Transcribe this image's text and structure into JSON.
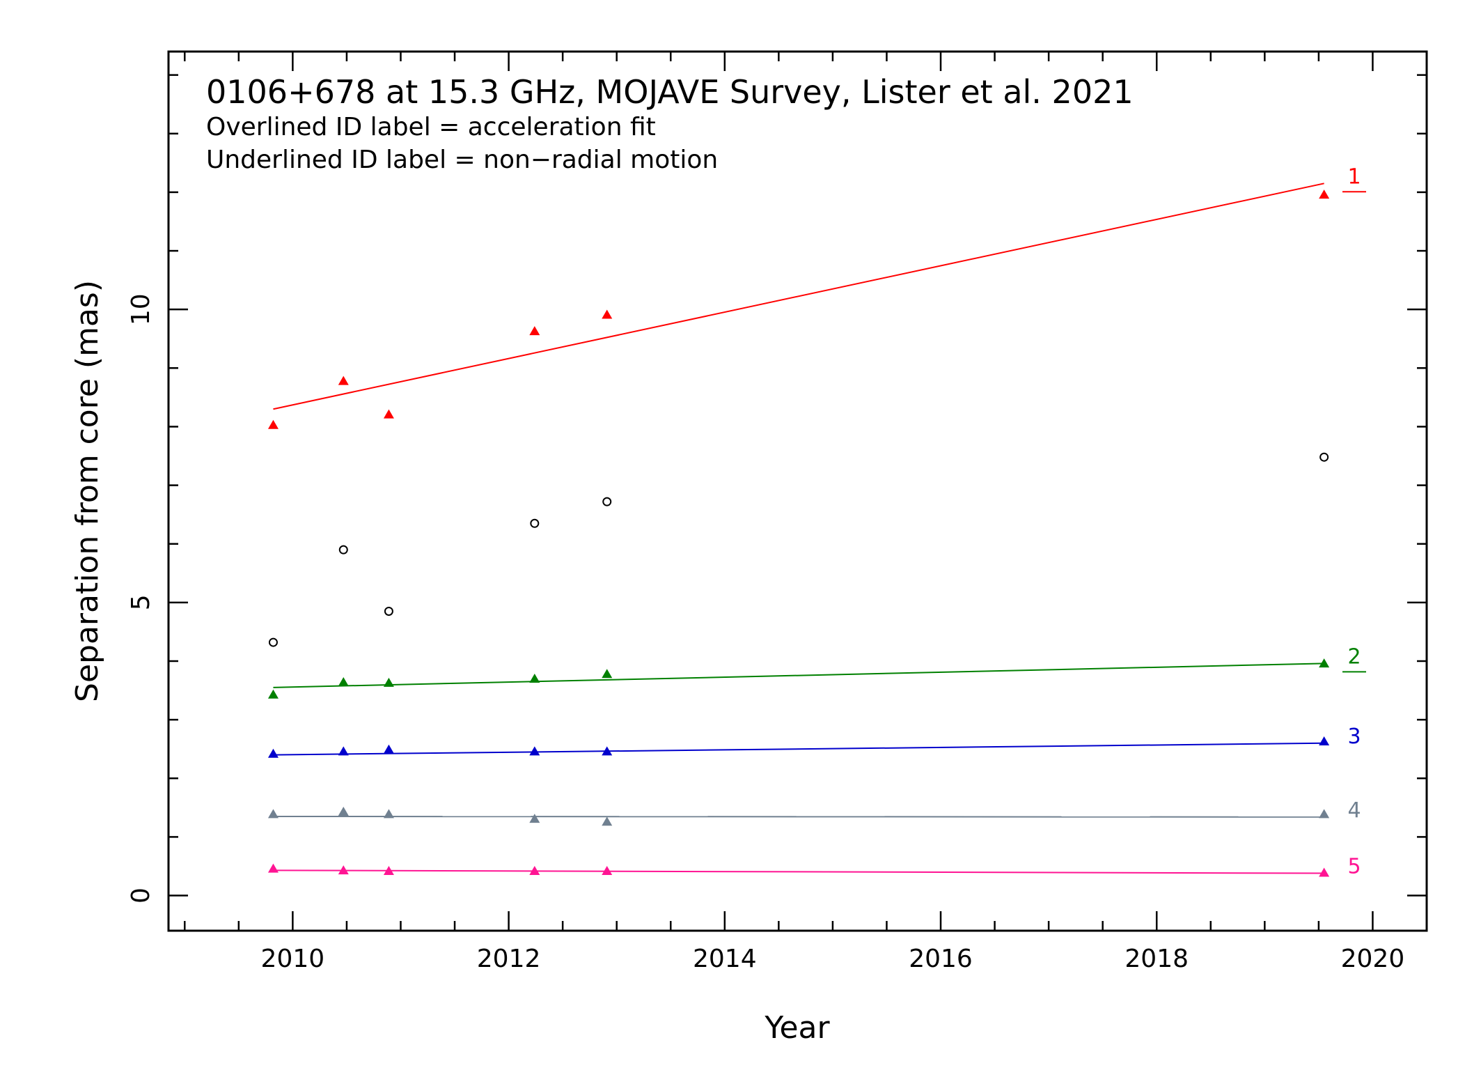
{
  "chart_data": {
    "type": "scatter",
    "title": "0106+678 at 15.3 GHz, MOJAVE Survey, Lister et al. 2021",
    "subtitles": [
      "Overlined ID label = acceleration fit",
      "Underlined ID label = non−radial motion"
    ],
    "xlabel": "Year",
    "ylabel": "Separation from core (mas)",
    "xlim": [
      2008.85,
      2020.5
    ],
    "ylim": [
      -0.6,
      14.4
    ],
    "xticks_major": [
      2010,
      2012,
      2014,
      2016,
      2018,
      2020
    ],
    "xtick_labels": [
      "2010",
      "2012",
      "2014",
      "2016",
      "2018",
      "2020"
    ],
    "yticks_major": [
      0,
      5,
      10
    ],
    "ytick_labels": [
      "0",
      "5",
      "10"
    ],
    "grid": false,
    "legend": "none",
    "series": [
      {
        "label": "1",
        "color": "#ff0000",
        "marker": "triangle",
        "underlined": true,
        "x": [
          2009.82,
          2010.47,
          2010.89,
          2012.24,
          2012.91,
          2019.55
        ],
        "y": [
          8.02,
          8.77,
          8.2,
          9.62,
          9.9,
          11.95
        ],
        "fit": {
          "x": [
            2009.82,
            2019.55
          ],
          "y": [
            8.3,
            12.15
          ]
        }
      },
      {
        "label": "2",
        "color": "#008000",
        "marker": "triangle",
        "underlined": true,
        "x": [
          2009.82,
          2010.47,
          2010.89,
          2012.24,
          2012.91,
          2019.55
        ],
        "y": [
          3.42,
          3.63,
          3.62,
          3.69,
          3.77,
          3.95
        ],
        "fit": {
          "x": [
            2009.82,
            2019.55
          ],
          "y": [
            3.55,
            3.96
          ]
        }
      },
      {
        "label": "3",
        "color": "#0000cc",
        "marker": "triangle",
        "underlined": false,
        "x": [
          2009.82,
          2010.47,
          2010.89,
          2012.24,
          2012.91,
          2019.55
        ],
        "y": [
          2.41,
          2.45,
          2.48,
          2.45,
          2.45,
          2.62
        ],
        "fit": {
          "x": [
            2009.82,
            2019.55
          ],
          "y": [
            2.4,
            2.6
          ]
        }
      },
      {
        "label": "4",
        "color": "#708090",
        "marker": "triangle",
        "underlined": false,
        "x": [
          2009.82,
          2010.47,
          2010.89,
          2012.24,
          2012.91,
          2019.55
        ],
        "y": [
          1.38,
          1.42,
          1.38,
          1.3,
          1.25,
          1.38
        ],
        "fit": {
          "x": [
            2009.82,
            2019.55
          ],
          "y": [
            1.35,
            1.34
          ]
        }
      },
      {
        "label": "5",
        "color": "#ff1493",
        "marker": "triangle",
        "underlined": false,
        "x": [
          2009.82,
          2010.47,
          2010.89,
          2012.24,
          2012.91,
          2019.55
        ],
        "y": [
          0.45,
          0.42,
          0.41,
          0.41,
          0.41,
          0.38
        ],
        "fit": {
          "x": [
            2009.82,
            2019.55
          ],
          "y": [
            0.43,
            0.38
          ]
        }
      },
      {
        "label": "",
        "color": "#000000",
        "marker": "circle-open",
        "underlined": false,
        "x": [
          2009.82,
          2010.47,
          2010.89,
          2012.24,
          2012.91,
          2019.55
        ],
        "y": [
          4.32,
          5.9,
          4.85,
          6.35,
          6.72,
          7.48
        ],
        "fit": null
      }
    ]
  }
}
